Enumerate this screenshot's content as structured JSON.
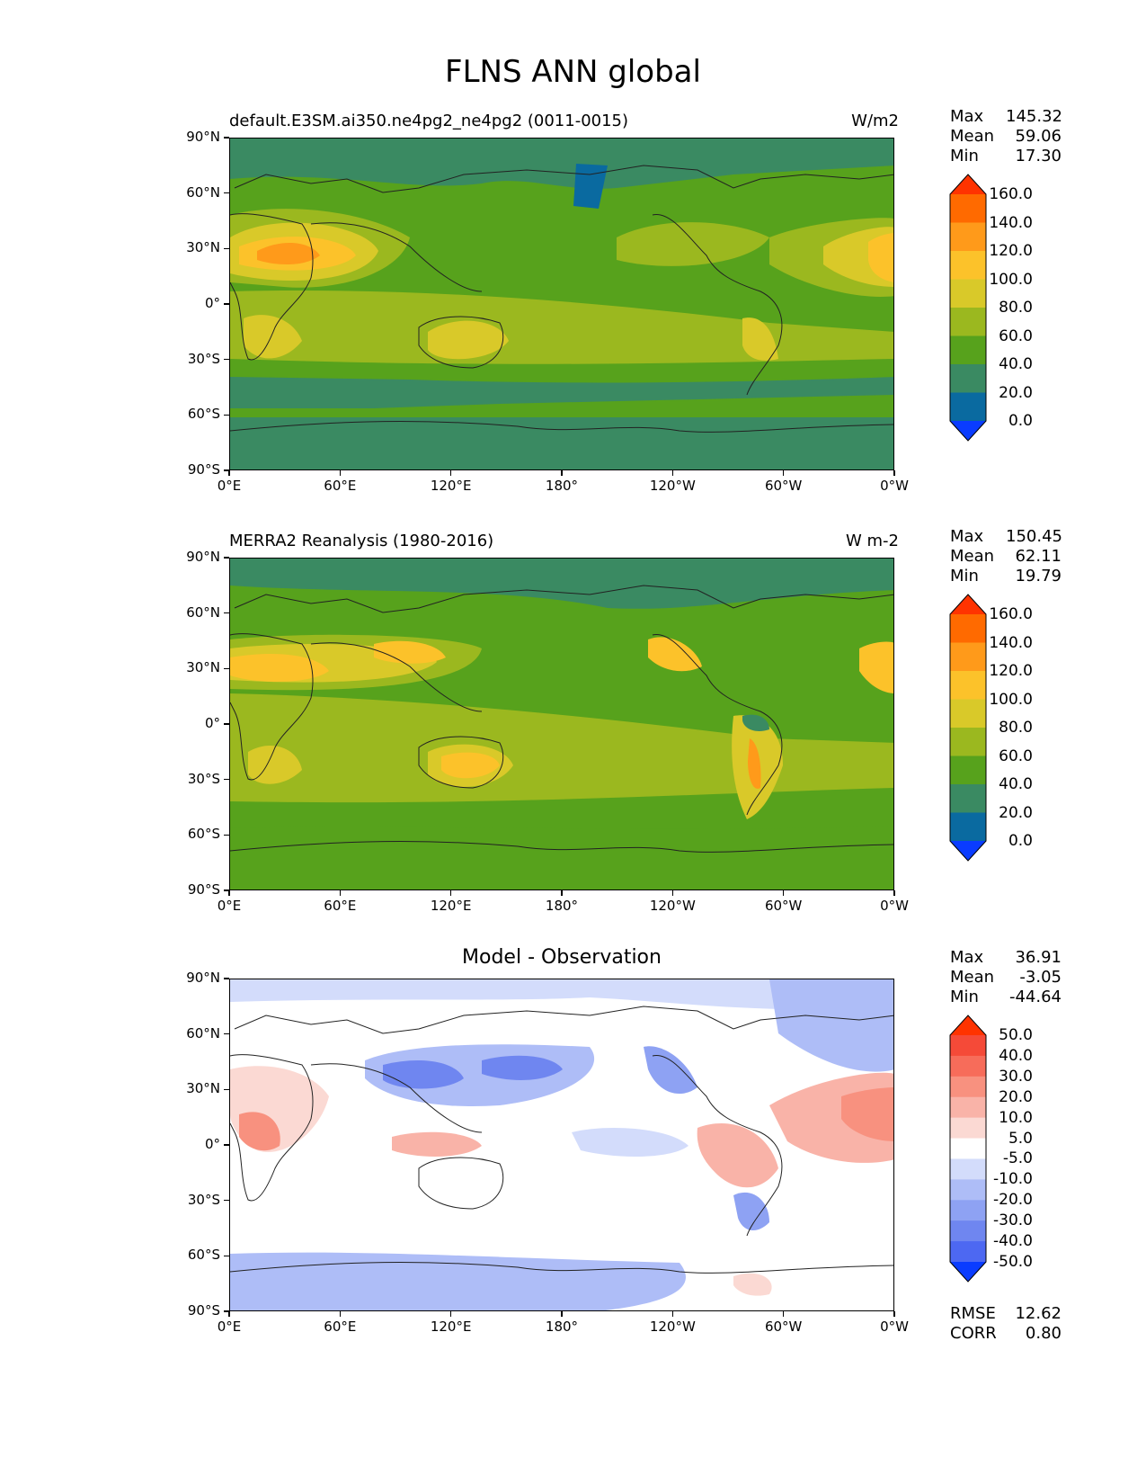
{
  "title": "FLNS ANN global",
  "x_ticks": [
    "0°E",
    "60°E",
    "120°E",
    "180°",
    "120°W",
    "60°W",
    "0°W"
  ],
  "y_ticks": [
    "90°N",
    "60°N",
    "30°N",
    "0°",
    "30°S",
    "60°S",
    "90°S"
  ],
  "panels": [
    {
      "left_title": "default.E3SM.ai350.ne4pg2_ne4pg2 (0011-0015)",
      "right_title": "W/m2",
      "stats": {
        "max_label": "Max",
        "max": "145.32",
        "mean_label": "Mean",
        "mean": "59.06",
        "min_label": "Min",
        "min": "17.30"
      },
      "colorbar": {
        "levels": [
          "160.0",
          "140.0",
          "120.0",
          "100.0",
          "80.0",
          "60.0",
          "40.0",
          "20.0",
          "0.0"
        ],
        "colors": [
          "#ff3300",
          "#ff6a00",
          "#ff9a1a",
          "#fcc22a",
          "#d9c929",
          "#9bb81f",
          "#57a21c",
          "#3a8a62",
          "#0a6aa0",
          "#0a3cff"
        ]
      }
    },
    {
      "left_title": "MERRA2 Reanalysis (1980-2016)",
      "right_title": "W m-2",
      "stats": {
        "max_label": "Max",
        "max": "150.45",
        "mean_label": "Mean",
        "mean": "62.11",
        "min_label": "Min",
        "min": "19.79"
      },
      "colorbar": {
        "levels": [
          "160.0",
          "140.0",
          "120.0",
          "100.0",
          "80.0",
          "60.0",
          "40.0",
          "20.0",
          "0.0"
        ],
        "colors": [
          "#ff3300",
          "#ff6a00",
          "#ff9a1a",
          "#fcc22a",
          "#d9c929",
          "#9bb81f",
          "#57a21c",
          "#3a8a62",
          "#0a6aa0",
          "#0a3cff"
        ]
      }
    },
    {
      "center_title": "Model - Observation",
      "stats": {
        "max_label": "Max",
        "max": "36.91",
        "mean_label": "Mean",
        "mean": "-3.05",
        "min_label": "Min",
        "min": "-44.64"
      },
      "colorbar": {
        "levels": [
          "50.0",
          "40.0",
          "30.0",
          "20.0",
          "10.0",
          "5.0",
          "-5.0",
          "-10.0",
          "-20.0",
          "-30.0",
          "-40.0",
          "-50.0"
        ],
        "colors": [
          "#ff3300",
          "#f54a38",
          "#f76c5a",
          "#f8917f",
          "#f9b3a8",
          "#fbd9d3",
          "#ffffff",
          "#d3dcfb",
          "#aebdf7",
          "#8ea2f3",
          "#6f86f0",
          "#4d68f2",
          "#0a3cff"
        ]
      },
      "rmse_label": "RMSE",
      "rmse": "12.62",
      "corr_label": "CORR",
      "corr": "0.80"
    }
  ]
}
